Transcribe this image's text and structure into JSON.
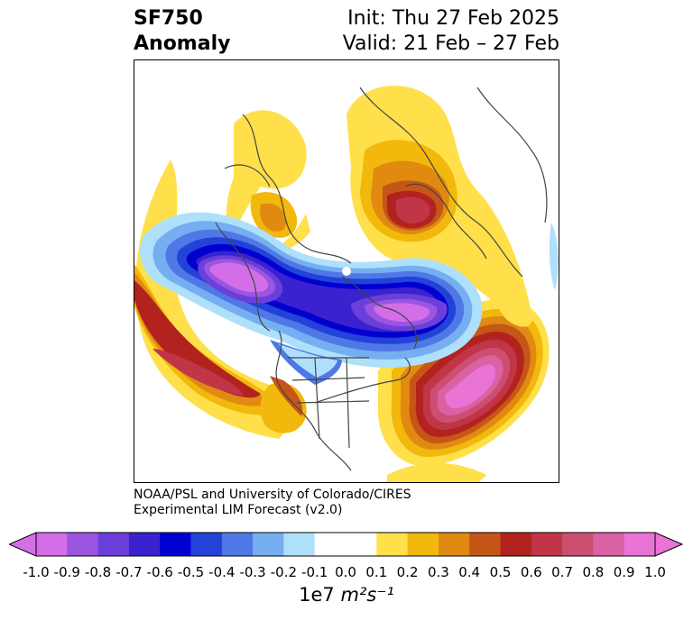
{
  "title": {
    "left_line1": "SF750",
    "left_line2": "Anomaly",
    "right_line1": "Init: Thu 27 Feb 2025",
    "right_line2": "Valid: 21 Feb – 27 Feb"
  },
  "credit": {
    "line1": "NOAA/PSL and University of Colorado/CIRES",
    "line2": "Experimental LIM Forecast (v2.0)"
  },
  "colorbar": {
    "ticks": [
      "-1.0",
      "-0.9",
      "-0.8",
      "-0.7",
      "-0.6",
      "-0.5",
      "-0.4",
      "-0.3",
      "-0.2",
      "-0.1",
      "0.0",
      "0.1",
      "0.2",
      "0.3",
      "0.4",
      "0.5",
      "0.6",
      "0.7",
      "0.8",
      "0.9",
      "1.0"
    ],
    "colors": [
      "#d36ee8",
      "#9b55e0",
      "#6b3fd9",
      "#3a22cf",
      "#0000d0",
      "#2342d8",
      "#4f78e6",
      "#76aef2",
      "#aee0fb",
      "#ffffff",
      "#ffffff",
      "#ffe04b",
      "#f2b80c",
      "#e08a12",
      "#c65618",
      "#b2221e",
      "#c03548",
      "#cc4f72",
      "#da62a4",
      "#e974d6"
    ],
    "units_prefix": "1e7",
    "units_label": "m²s⁻¹"
  },
  "map": {
    "projection": "north-polar stereographic",
    "field": "streamfunction anomaly at 750 hPa",
    "pole_marker_color": "#ffffff"
  }
}
